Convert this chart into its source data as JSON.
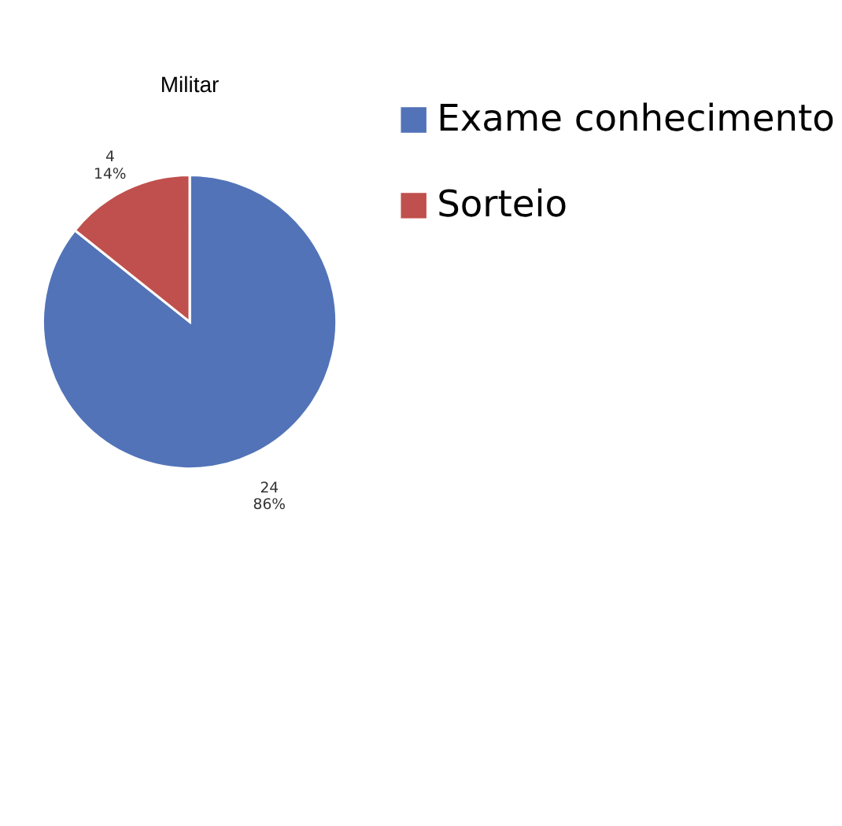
{
  "chart_data": {
    "type": "pie",
    "title": "Militar",
    "categories": [
      "Exame conhecimento",
      "Sorteio"
    ],
    "values": [
      24,
      4
    ],
    "colors": [
      "#5273b8",
      "#c0504d"
    ],
    "value_labels": [
      "24\n86%",
      "4\n14%"
    ],
    "legend": "right"
  }
}
